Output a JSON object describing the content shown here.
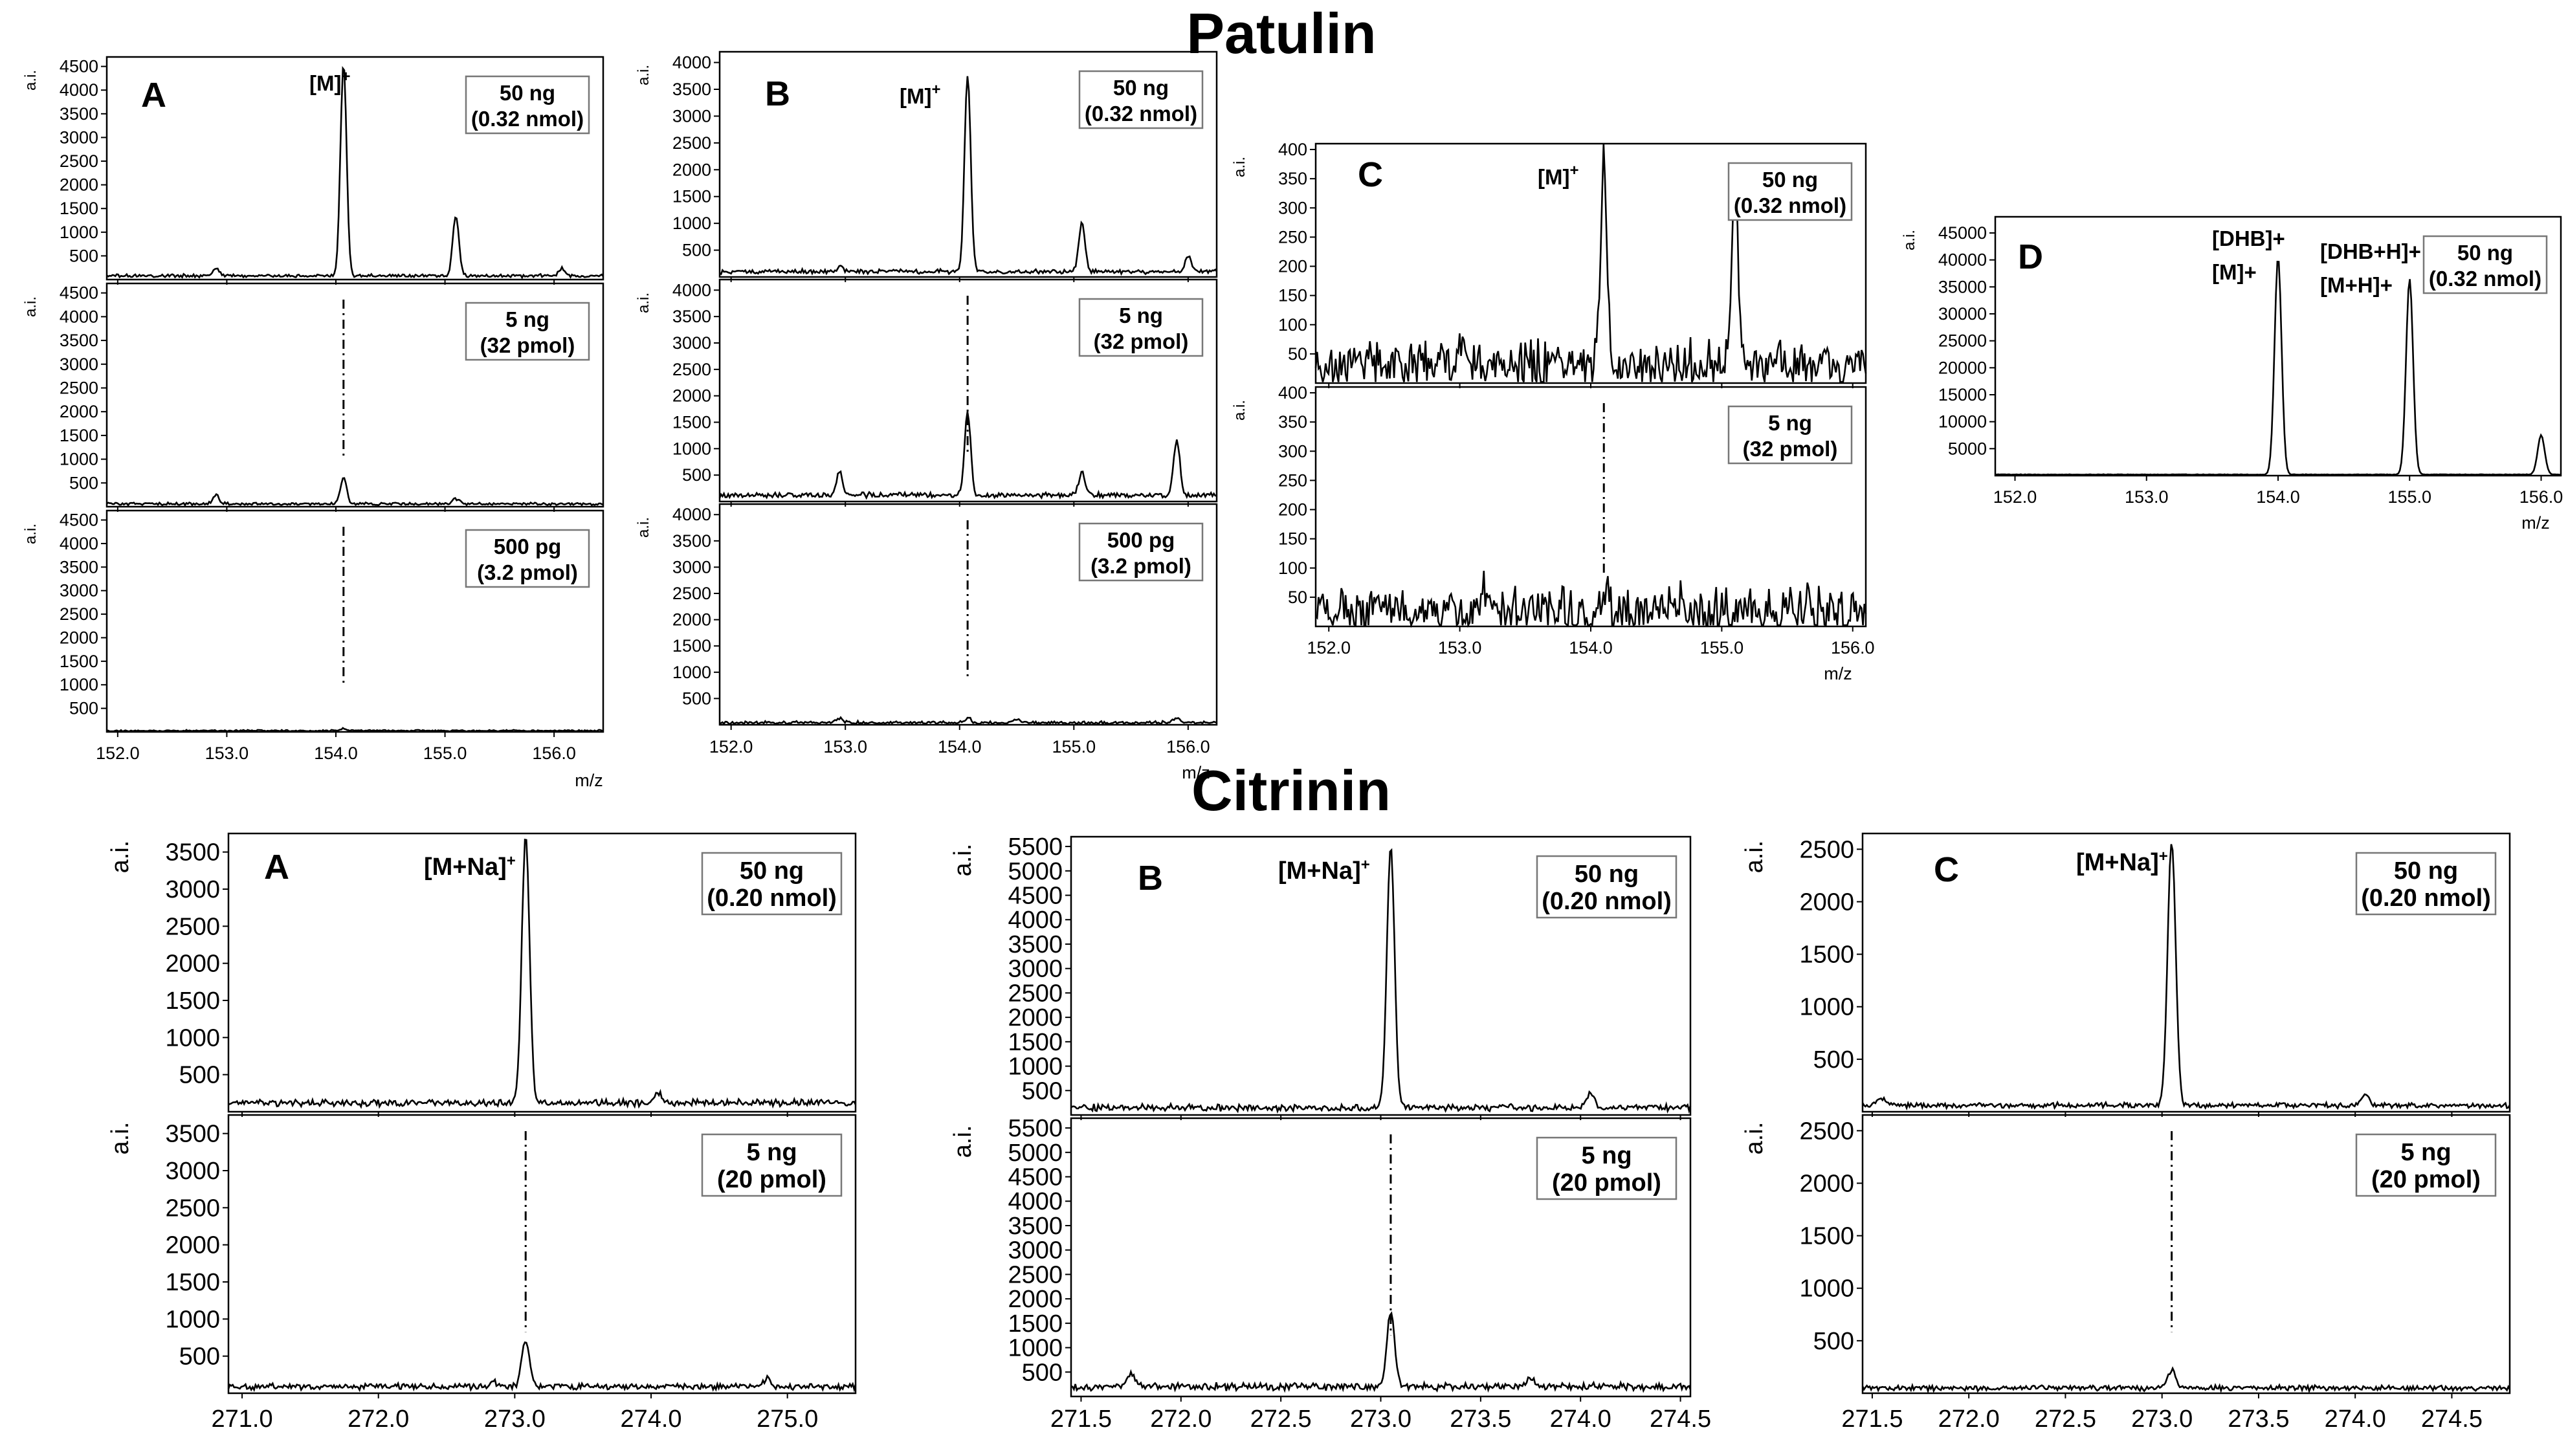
{
  "titles": {
    "patulin": "Patulin",
    "citrinin": "Citrinin"
  },
  "colors": {
    "trace": "#000000",
    "frame": "#000000",
    "box_border": "#777777"
  },
  "chart_data": [
    {
      "id": "patulin_A",
      "type": "line",
      "panel": "A",
      "xlabel": "m/z",
      "ylabel": "a.i.",
      "xlim": [
        151.9,
        156.45
      ],
      "xticks": [
        152.0,
        153.0,
        154.0,
        155.0,
        156.0
      ],
      "ion": "[M]",
      "ion_sup": "+",
      "subplots": [
        {
          "label": [
            "50 ng",
            "(0.32 nmol)"
          ],
          "ylim": [
            0,
            4700
          ],
          "yticks": [
            500,
            1000,
            1500,
            2000,
            2500,
            3000,
            3500,
            4000,
            4500
          ],
          "baseline": 80,
          "noise": 40,
          "peaks": [
            [
              152.9,
              250
            ],
            [
              154.07,
              4550
            ],
            [
              155.1,
              1350
            ],
            [
              156.07,
              230
            ]
          ]
        },
        {
          "label": [
            "5 ng",
            "(32 pmol)"
          ],
          "ylim": [
            0,
            4700
          ],
          "yticks": [
            500,
            1000,
            1500,
            2000,
            2500,
            3000,
            3500,
            4000,
            4500
          ],
          "baseline": 60,
          "noise": 35,
          "peaks": [
            [
              152.9,
              250
            ],
            [
              154.07,
              620
            ],
            [
              155.1,
              170
            ]
          ],
          "marker_x": 154.07
        },
        {
          "label": [
            "500 pg",
            "(3.2 pmol)"
          ],
          "ylim": [
            0,
            4700
          ],
          "yticks": [
            500,
            1000,
            1500,
            2000,
            2500,
            3000,
            3500,
            4000,
            4500
          ],
          "baseline": 25,
          "noise": 20,
          "peaks": [
            [
              154.07,
              70
            ]
          ],
          "marker_x": 154.07
        }
      ]
    },
    {
      "id": "patulin_B",
      "type": "line",
      "panel": "B",
      "xlabel": "m/z",
      "ylabel": "a.i.",
      "xlim": [
        151.9,
        156.25
      ],
      "xticks": [
        152.0,
        153.0,
        154.0,
        155.0,
        156.0
      ],
      "ion": "[M]",
      "ion_sup": "+",
      "subplots": [
        {
          "label": [
            "50 ng",
            "(0.32 nmol)"
          ],
          "ylim": [
            0,
            4200
          ],
          "yticks": [
            500,
            1000,
            1500,
            2000,
            2500,
            3000,
            3500,
            4000
          ],
          "baseline": 100,
          "noise": 50,
          "peaks": [
            [
              152.95,
              200
            ],
            [
              154.07,
              3780
            ],
            [
              155.07,
              1000
            ],
            [
              156.0,
              390
            ]
          ]
        },
        {
          "label": [
            "5 ng",
            "(32 pmol)"
          ],
          "ylim": [
            0,
            4200
          ],
          "yticks": [
            500,
            1000,
            1500,
            2000,
            2500,
            3000,
            3500,
            4000
          ],
          "baseline": 120,
          "noise": 60,
          "peaks": [
            [
              152.95,
              560
            ],
            [
              154.07,
              1680
            ],
            [
              155.07,
              560
            ],
            [
              155.9,
              1180
            ]
          ],
          "marker_x": 154.07
        },
        {
          "label": [
            "500 pg",
            "(3.2 pmol)"
          ],
          "ylim": [
            0,
            4200
          ],
          "yticks": [
            500,
            1000,
            1500,
            2000,
            2500,
            3000,
            3500,
            4000
          ],
          "baseline": 40,
          "noise": 35,
          "peaks": [
            [
              152.95,
              120
            ],
            [
              154.07,
              130
            ],
            [
              154.5,
              110
            ],
            [
              155.9,
              120
            ]
          ],
          "marker_x": 154.07
        }
      ]
    },
    {
      "id": "patulin_C",
      "type": "line",
      "panel": "C",
      "xlabel": "m/z",
      "ylabel": "a.i.",
      "xlim": [
        151.9,
        156.1
      ],
      "xticks": [
        152.0,
        153.0,
        154.0,
        155.0,
        156.0
      ],
      "ion": "[M]",
      "ion_sup": "+",
      "subplots": [
        {
          "label": [
            "50 ng",
            "(0.32 nmol)"
          ],
          "ylim": [
            0,
            410
          ],
          "yticks": [
            50,
            100,
            150,
            200,
            250,
            300,
            350,
            400
          ],
          "baseline": 30,
          "noise": 50,
          "peaks": [
            [
              154.1,
              385
            ],
            [
              155.1,
              340
            ],
            [
              153.0,
              80
            ]
          ]
        },
        {
          "label": [
            "5 ng",
            "(32 pmol)"
          ],
          "ylim": [
            0,
            410
          ],
          "yticks": [
            50,
            100,
            150,
            200,
            250,
            300,
            350,
            400
          ],
          "baseline": 25,
          "noise": 55,
          "peaks": [
            [
              153.2,
              70
            ],
            [
              154.1,
              60
            ]
          ],
          "marker_x": 154.1
        }
      ]
    },
    {
      "id": "patulin_D",
      "type": "line",
      "panel": "D",
      "xlabel": "m/z",
      "ylabel": "a.i.",
      "xlim": [
        151.85,
        156.15
      ],
      "xticks": [
        152.0,
        153.0,
        154.0,
        155.0,
        156.0
      ],
      "ion_left": [
        "[DHB]+",
        "[M]+"
      ],
      "ion_right": [
        "[DHB+H]+",
        "[M+H]+"
      ],
      "subplots": [
        {
          "label": [
            "50 ng",
            "(0.32 nmol)"
          ],
          "ylim": [
            0,
            48000
          ],
          "yticks": [
            5000,
            10000,
            15000,
            20000,
            25000,
            30000,
            35000,
            40000,
            45000
          ],
          "baseline": 200,
          "noise": 60,
          "peaks": [
            [
              154.0,
              40500
            ],
            [
              155.0,
              36500
            ],
            [
              156.0,
              7500
            ]
          ]
        }
      ]
    },
    {
      "id": "citrinin_A",
      "type": "line",
      "panel": "A",
      "xlabel": "",
      "ylabel": "a.i.",
      "xlim": [
        270.9,
        275.5
      ],
      "xticks": [
        271.0,
        272.0,
        273.0,
        274.0,
        275.0
      ],
      "ion": "[M+Na]",
      "ion_sup": "+",
      "subplots": [
        {
          "label": [
            "50 ng",
            "(0.20 nmol)"
          ],
          "ylim": [
            0,
            3750
          ],
          "yticks": [
            500,
            1000,
            1500,
            2000,
            2500,
            3000,
            3500
          ],
          "baseline": 120,
          "noise": 55,
          "peaks": [
            [
              273.08,
              3720
            ],
            [
              274.05,
              260
            ]
          ]
        },
        {
          "label": [
            "5 ng",
            "(20 pmol)"
          ],
          "ylim": [
            0,
            3750
          ],
          "yticks": [
            500,
            1000,
            1500,
            2000,
            2500,
            3000,
            3500
          ],
          "baseline": 90,
          "noise": 50,
          "peaks": [
            [
              272.85,
              150
            ],
            [
              273.08,
              700
            ],
            [
              274.85,
              200
            ]
          ],
          "marker_x": 273.08
        }
      ]
    },
    {
      "id": "citrinin_B",
      "type": "line",
      "panel": "B",
      "xlabel": "",
      "ylabel": "a.i.",
      "xlim": [
        271.45,
        274.55
      ],
      "xticks": [
        271.5,
        272.0,
        272.5,
        273.0,
        273.5,
        274.0,
        274.5
      ],
      "ion": "[M+Na]",
      "ion_sup": "+",
      "subplots": [
        {
          "label": [
            "50 ng",
            "(0.20 nmol)"
          ],
          "ylim": [
            0,
            5700
          ],
          "yticks": [
            500,
            1000,
            1500,
            2000,
            2500,
            3000,
            3500,
            4000,
            4500,
            5000,
            5500
          ],
          "baseline": 150,
          "noise": 80,
          "peaks": [
            [
              273.05,
              5500
            ],
            [
              274.05,
              450
            ]
          ]
        },
        {
          "label": [
            "5 ng",
            "(20 pmol)"
          ],
          "ylim": [
            0,
            5700
          ],
          "yticks": [
            500,
            1000,
            1500,
            2000,
            2500,
            3000,
            3500,
            4000,
            4500,
            5000,
            5500
          ],
          "baseline": 200,
          "noise": 90,
          "peaks": [
            [
              271.75,
              450
            ],
            [
              273.05,
              1750
            ],
            [
              273.75,
              400
            ]
          ],
          "marker_x": 273.05
        }
      ]
    },
    {
      "id": "citrinin_C",
      "type": "line",
      "panel": "C",
      "xlabel": "",
      "ylabel": "a.i.",
      "xlim": [
        271.45,
        274.8
      ],
      "xticks": [
        271.5,
        272.0,
        272.5,
        273.0,
        273.5,
        274.0,
        274.5
      ],
      "ion": "[M+Na]",
      "ion_sup": "+",
      "subplots": [
        {
          "label": [
            "50 ng",
            "(0.20 nmol)"
          ],
          "ylim": [
            0,
            2650
          ],
          "yticks": [
            500,
            1000,
            1500,
            2000,
            2500
          ],
          "baseline": 60,
          "noise": 30,
          "peaks": [
            [
              271.55,
              130
            ],
            [
              273.05,
              2580
            ],
            [
              274.05,
              170
            ]
          ]
        },
        {
          "label": [
            "5 ng",
            "(20 pmol)"
          ],
          "ylim": [
            0,
            2650
          ],
          "yticks": [
            500,
            1000,
            1500,
            2000,
            2500
          ],
          "baseline": 50,
          "noise": 30,
          "peaks": [
            [
              273.05,
              220
            ]
          ],
          "marker_x": 273.05
        }
      ]
    }
  ]
}
